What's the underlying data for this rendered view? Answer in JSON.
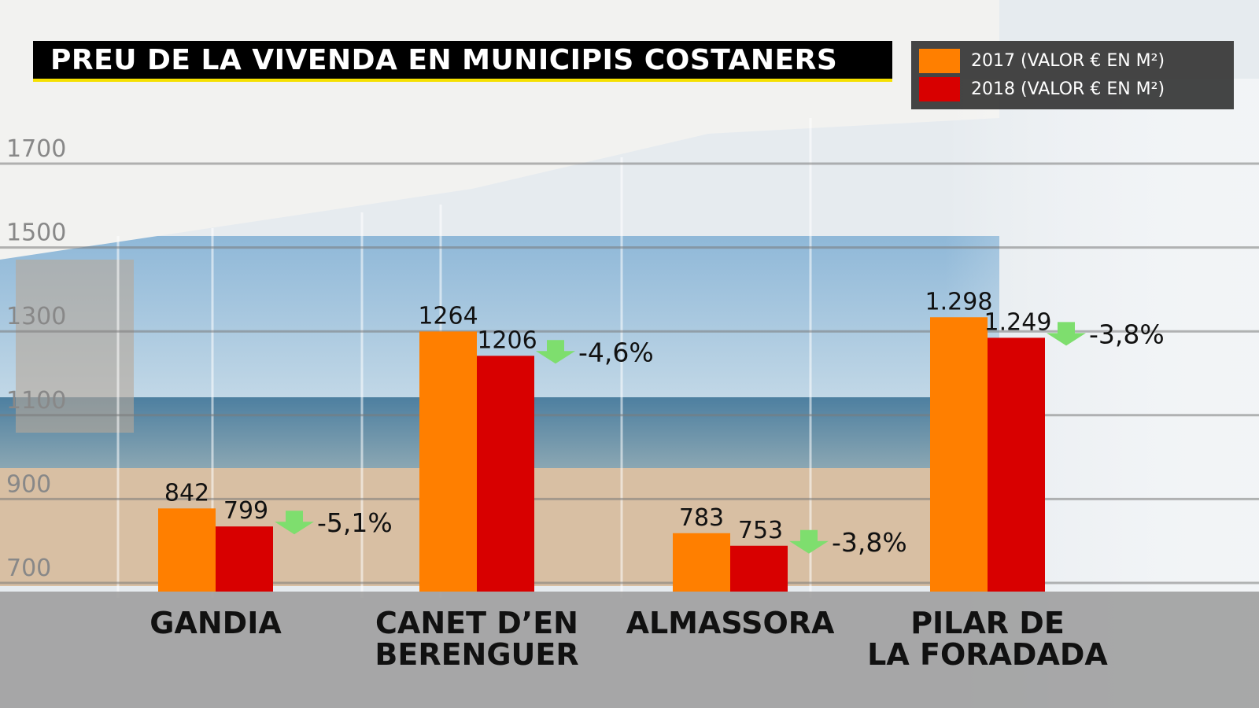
{
  "title": "PREU DE LA VIVENDA EN MUNICIPIS COSTANERS",
  "colors": {
    "2017": "#ff7f00",
    "2018": "#d80000",
    "arrow": "#7ede6e",
    "title_underline": "#f5e000"
  },
  "chart_data": {
    "type": "bar",
    "categories": [
      "GANDIA",
      "CANET D’EN BERENGUER",
      "ALMASSORA",
      "PILAR DE LA FORADADA"
    ],
    "category_lines": [
      [
        "GANDIA"
      ],
      [
        "CANET D’EN",
        "BERENGUER"
      ],
      [
        "ALMASSORA"
      ],
      [
        "PILAR DE",
        "LA FORADADA"
      ]
    ],
    "series": [
      {
        "name": "2017 (VALOR € EN M²)",
        "values": [
          842,
          1264,
          783,
          1298
        ],
        "labels": [
          "842",
          "1264",
          "783",
          "1.298"
        ]
      },
      {
        "name": "2018 (VALOR € EN M²)",
        "values": [
          799,
          1206,
          753,
          1249
        ],
        "labels": [
          "799",
          "1206",
          "753",
          "1.249"
        ]
      }
    ],
    "changes": [
      "-5,1%",
      "-4,6%",
      "-3,8%",
      "-3,8%"
    ],
    "yticks": [
      700,
      900,
      1100,
      1300,
      1500,
      1700
    ],
    "ylim": [
      660,
      1730
    ],
    "grid": true,
    "legend_position": "top-right"
  }
}
